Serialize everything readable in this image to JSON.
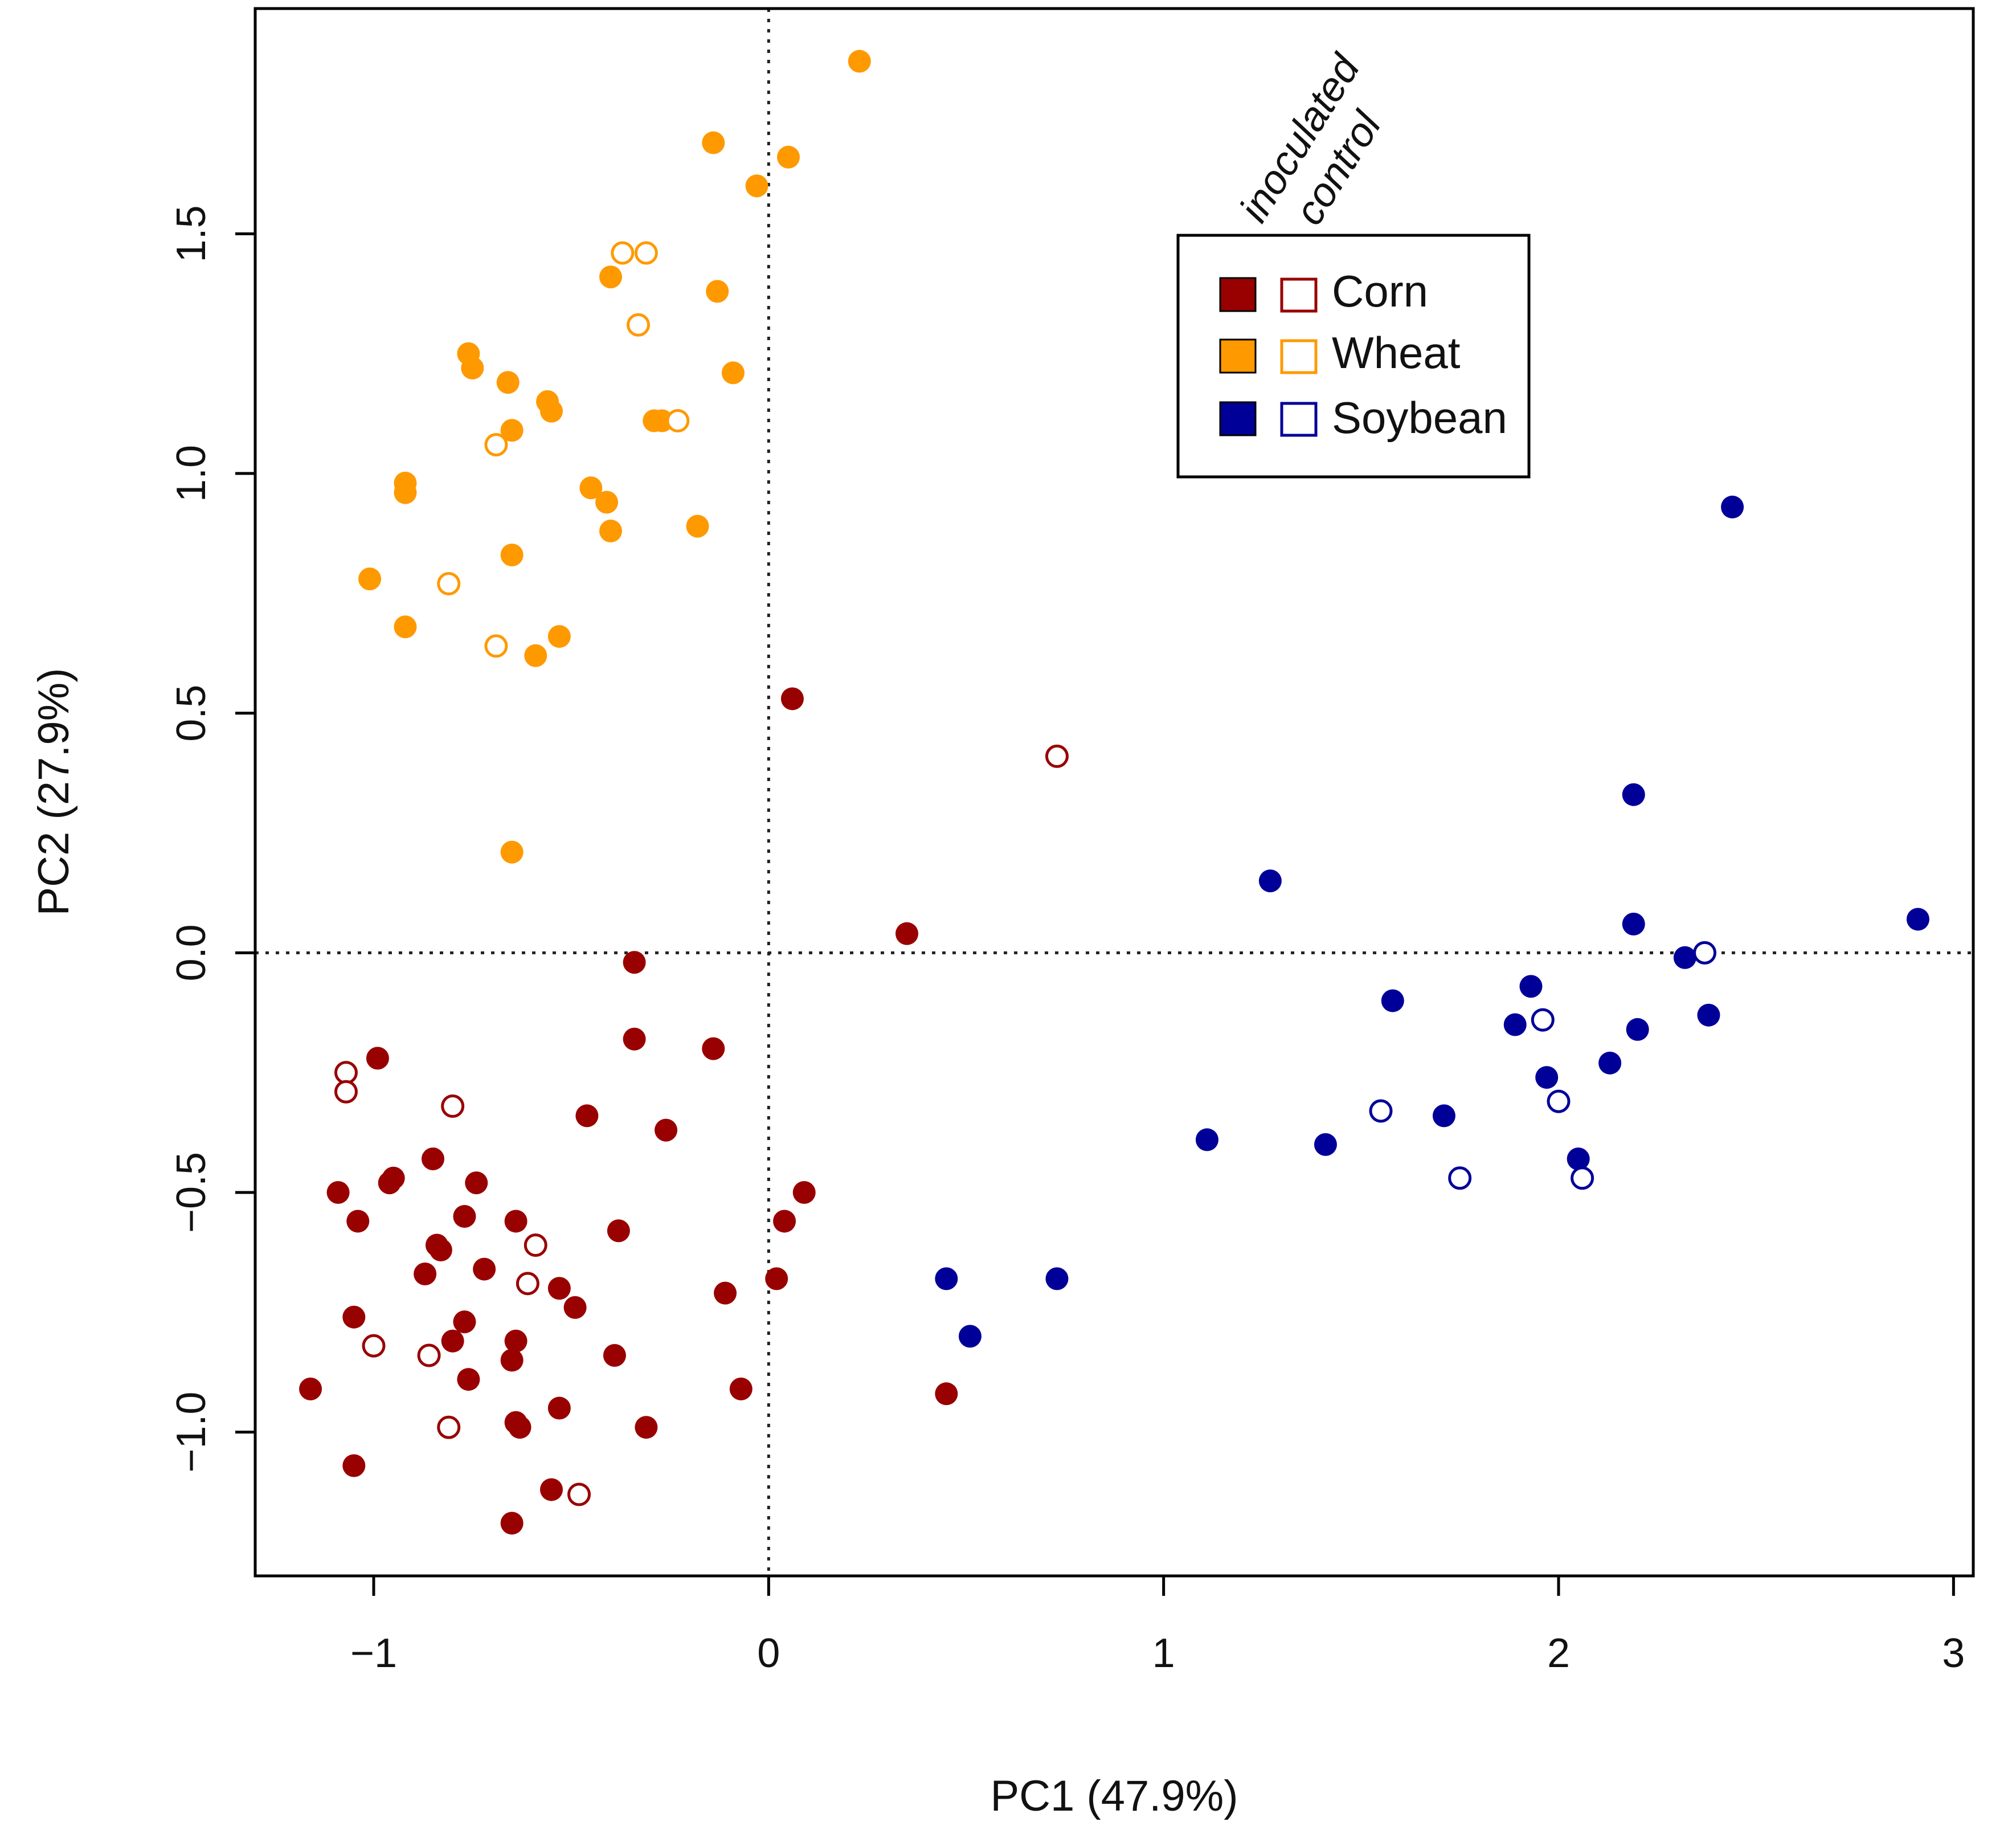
{
  "chart_data": {
    "type": "scatter",
    "xlabel": "PC1 (47.9%)",
    "ylabel": "PC2 (27.9%)",
    "xlim": [
      -1.3,
      3.05
    ],
    "ylim": [
      -1.3,
      1.97
    ],
    "xticks": [
      "−1",
      "0",
      "1",
      "2",
      "3"
    ],
    "xtick_values": [
      -1,
      0,
      1,
      2,
      3
    ],
    "yticks": [
      "−1.0",
      "−0.5",
      "0.0",
      "0.5",
      "1.0",
      "1.5"
    ],
    "ytick_values": [
      -1.0,
      -0.5,
      0.0,
      0.5,
      1.0,
      1.5
    ],
    "grid": false,
    "reference_lines": {
      "x": 0,
      "y": 0,
      "style": "dotted"
    },
    "legend": {
      "placement": "upper-center",
      "header": [
        "inoculated",
        "control"
      ],
      "entries": [
        "Corn",
        "Wheat",
        "Soybean"
      ]
    },
    "colors": {
      "Corn": "#990000",
      "Wheat": "#ff9900",
      "Soybean": "#000099"
    },
    "series": [
      {
        "name": "Corn",
        "treatment": "inoculated",
        "marker": "filled",
        "points": [
          [
            0.06,
            0.53
          ],
          [
            0.35,
            0.04
          ],
          [
            -0.34,
            -0.02
          ],
          [
            -0.34,
            -0.18
          ],
          [
            -0.14,
            -0.2
          ],
          [
            -0.99,
            -0.22
          ],
          [
            -0.46,
            -0.34
          ],
          [
            -0.26,
            -0.37
          ],
          [
            -1.09,
            -0.5
          ],
          [
            -0.95,
            -0.47
          ],
          [
            -0.96,
            -0.48
          ],
          [
            -0.85,
            -0.43
          ],
          [
            -0.74,
            -0.48
          ],
          [
            -0.77,
            -0.55
          ],
          [
            -1.04,
            -0.56
          ],
          [
            -0.64,
            -0.56
          ],
          [
            -0.38,
            -0.58
          ],
          [
            -0.84,
            -0.61
          ],
          [
            -0.83,
            -0.62
          ],
          [
            -0.72,
            -0.66
          ],
          [
            -0.87,
            -0.67
          ],
          [
            -0.53,
            -0.7
          ],
          [
            -1.05,
            -0.76
          ],
          [
            -0.77,
            -0.77
          ],
          [
            -0.64,
            -0.81
          ],
          [
            -0.49,
            -0.74
          ],
          [
            -0.8,
            -0.81
          ],
          [
            -0.65,
            -0.85
          ],
          [
            -0.39,
            -0.84
          ],
          [
            -0.76,
            -0.89
          ],
          [
            -1.16,
            -0.91
          ],
          [
            -0.53,
            -0.95
          ],
          [
            -0.64,
            -0.98
          ],
          [
            -0.63,
            -0.99
          ],
          [
            -0.31,
            -0.99
          ],
          [
            -1.05,
            -1.07
          ],
          [
            -0.55,
            -1.12
          ],
          [
            -0.65,
            -1.19
          ],
          [
            -0.07,
            -0.91
          ],
          [
            -0.11,
            -0.71
          ],
          [
            0.02,
            -0.68
          ],
          [
            0.04,
            -0.56
          ],
          [
            0.09,
            -0.5
          ],
          [
            0.45,
            -0.92
          ]
        ]
      },
      {
        "name": "Corn",
        "treatment": "control",
        "marker": "open",
        "points": [
          [
            0.73,
            0.41
          ],
          [
            -1.07,
            -0.25
          ],
          [
            -1.07,
            -0.29
          ],
          [
            -0.8,
            -0.32
          ],
          [
            -0.59,
            -0.61
          ],
          [
            -0.61,
            -0.69
          ],
          [
            -1.0,
            -0.82
          ],
          [
            -0.86,
            -0.84
          ],
          [
            -0.81,
            -0.99
          ],
          [
            -0.48,
            -1.13
          ]
        ]
      },
      {
        "name": "Wheat",
        "treatment": "inoculated",
        "marker": "filled",
        "points": [
          [
            0.23,
            1.86
          ],
          [
            -0.14,
            1.69
          ],
          [
            0.05,
            1.66
          ],
          [
            -0.03,
            1.6
          ],
          [
            -0.4,
            1.41
          ],
          [
            -0.13,
            1.38
          ],
          [
            -0.76,
            1.25
          ],
          [
            -0.75,
            1.22
          ],
          [
            -0.66,
            1.19
          ],
          [
            -0.09,
            1.21
          ],
          [
            -0.56,
            1.15
          ],
          [
            -0.55,
            1.13
          ],
          [
            -0.29,
            1.11
          ],
          [
            -0.27,
            1.11
          ],
          [
            -0.65,
            1.09
          ],
          [
            -0.92,
            0.98
          ],
          [
            -0.92,
            0.96
          ],
          [
            -0.45,
            0.97
          ],
          [
            -0.41,
            0.94
          ],
          [
            -0.4,
            0.88
          ],
          [
            -0.18,
            0.89
          ],
          [
            -0.65,
            0.83
          ],
          [
            -1.01,
            0.78
          ],
          [
            -0.92,
            0.68
          ],
          [
            -0.53,
            0.66
          ],
          [
            -0.59,
            0.62
          ],
          [
            -0.65,
            0.21
          ]
        ]
      },
      {
        "name": "Wheat",
        "treatment": "control",
        "marker": "open",
        "points": [
          [
            -0.37,
            1.46
          ],
          [
            -0.31,
            1.46
          ],
          [
            -0.33,
            1.31
          ],
          [
            -0.23,
            1.11
          ],
          [
            -0.69,
            1.06
          ],
          [
            -0.81,
            0.77
          ],
          [
            -0.69,
            0.64
          ]
        ]
      },
      {
        "name": "Soybean",
        "treatment": "inoculated",
        "marker": "filled",
        "points": [
          [
            2.44,
            0.93
          ],
          [
            2.19,
            0.33
          ],
          [
            1.27,
            0.15
          ],
          [
            2.19,
            0.06
          ],
          [
            2.91,
            0.07
          ],
          [
            2.32,
            -0.01
          ],
          [
            1.93,
            -0.07
          ],
          [
            1.58,
            -0.1
          ],
          [
            2.38,
            -0.13
          ],
          [
            1.89,
            -0.15
          ],
          [
            2.2,
            -0.16
          ],
          [
            2.13,
            -0.23
          ],
          [
            1.97,
            -0.26
          ],
          [
            1.71,
            -0.34
          ],
          [
            1.11,
            -0.39
          ],
          [
            1.41,
            -0.4
          ],
          [
            2.05,
            -0.43
          ],
          [
            0.45,
            -0.68
          ],
          [
            0.73,
            -0.68
          ],
          [
            0.51,
            -0.8
          ]
        ]
      },
      {
        "name": "Soybean",
        "treatment": "control",
        "marker": "open",
        "points": [
          [
            2.37,
            -0.0
          ],
          [
            1.96,
            -0.14
          ],
          [
            2.0,
            -0.31
          ],
          [
            1.55,
            -0.33
          ],
          [
            1.75,
            -0.47
          ],
          [
            2.06,
            -0.47
          ]
        ]
      }
    ]
  }
}
